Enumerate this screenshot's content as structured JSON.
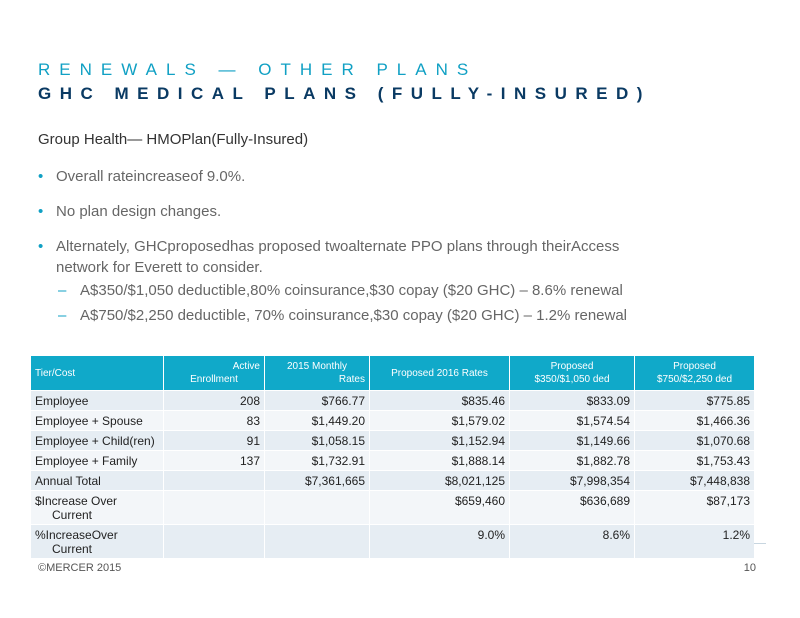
{
  "header": {
    "title_line1": "RENEWALS — OTHER PLANS",
    "title_line2": "GHC MEDICAL PLANS (FULLY-INSURED)"
  },
  "content": {
    "subtitle": "Group Health— HMOPlan(Fully-Insured)",
    "bullets": [
      "Overall rateincreaseof 9.0%.",
      "No plan design changes.",
      "Alternately, GHCproposedhas proposed twoalternate PPO plans through theirAccess",
      "network for Everett to consider."
    ],
    "sub_bullets": [
      "A$350/$1,050 deductible,80% coinsurance,$30 copay ($20 GHC) – 8.6% renewal",
      "A$750/$2,250 deductible, 70% coinsurance,$30 copay ($20 GHC) – 1.2% renewal"
    ]
  },
  "table": {
    "headers": {
      "tier": "Tier/Cost",
      "active_1": "Active",
      "active_2": "Enrollment",
      "monthly_1": "2015      Monthly",
      "monthly_2": "Rates",
      "proposed_2016": "Proposed          2016        Rates",
      "prop350_1": "Proposed",
      "prop350_2": "$350/$1,050              ded",
      "prop750_1": "Proposed",
      "prop750_2": "$750/$2,250            ded"
    },
    "rows": [
      {
        "label": "Employee",
        "label2": "",
        "enrollment": "208",
        "rate_2015": "$766.77",
        "rate_2016": "$835.46",
        "prop350": "$833.09",
        "prop750": "$775.85"
      },
      {
        "label": "Employee + Spouse",
        "label2": "",
        "enrollment": "83",
        "rate_2015": "$1,449.20",
        "rate_2016": "$1,579.02",
        "prop350": "$1,574.54",
        "prop750": "$1,466.36"
      },
      {
        "label": "Employee + Child(ren)",
        "label2": "",
        "enrollment": "91",
        "rate_2015": "$1,058.15",
        "rate_2016": "$1,152.94",
        "prop350": "$1,149.66",
        "prop750": "$1,070.68"
      },
      {
        "label": "Employee + Family",
        "label2": "",
        "enrollment": "137",
        "rate_2015": "$1,732.91",
        "rate_2016": "$1,888.14",
        "prop350": "$1,882.78",
        "prop750": "$1,753.43"
      },
      {
        "label": "Annual Total",
        "label2": "",
        "enrollment": "",
        "rate_2015": "$7,361,665",
        "rate_2016": "$8,021,125",
        "prop350": "$7,998,354",
        "prop750": "$7,448,838"
      },
      {
        "label": "$Increase Over",
        "label2": "Current",
        "enrollment": "",
        "rate_2015": "",
        "rate_2016": "$659,460",
        "prop350": "$636,689",
        "prop750": "$87,173"
      },
      {
        "label": "%IncreaseOver",
        "label2": "Current",
        "enrollment": "",
        "rate_2015": "",
        "rate_2016": "9.0%",
        "prop350": "8.6%",
        "prop750": "1.2%"
      }
    ]
  },
  "footer": {
    "copyright": "©MERCER 2015",
    "page_number": "10"
  }
}
